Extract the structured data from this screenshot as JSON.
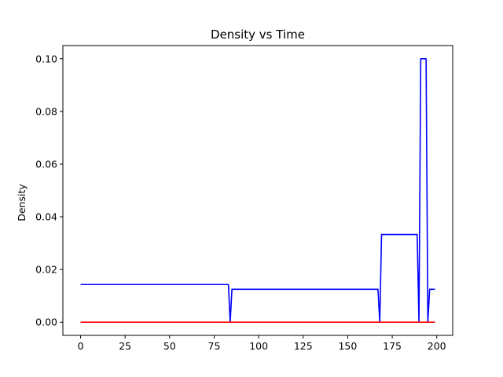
{
  "chart_data": {
    "type": "line",
    "title": "Density vs Time",
    "xlabel": "",
    "ylabel": "Density",
    "xlim": [
      -9.95,
      208.95
    ],
    "ylim": [
      -0.005,
      0.105
    ],
    "xticks": [
      0,
      25,
      50,
      75,
      100,
      125,
      150,
      175,
      200
    ],
    "yticks": [
      0.0,
      0.02,
      0.04,
      0.06,
      0.08,
      0.1
    ],
    "ytick_labels": [
      "0.00",
      "0.02",
      "0.04",
      "0.06",
      "0.08",
      "0.10"
    ],
    "grid": false,
    "legend": null,
    "series": [
      {
        "color": "#0000ff",
        "x": [
          0,
          83,
          84,
          85,
          167,
          168,
          169,
          189,
          190,
          191,
          194,
          195,
          196,
          197,
          199
        ],
        "y": [
          0.0143,
          0.0143,
          0,
          0.0125,
          0.0125,
          0,
          0.0333,
          0.0333,
          0,
          0.1,
          0.1,
          0,
          0.0125,
          0.0125,
          0.0125
        ]
      },
      {
        "color": "#ff0000",
        "x": [
          0,
          199
        ],
        "y": [
          0,
          0
        ]
      }
    ]
  }
}
